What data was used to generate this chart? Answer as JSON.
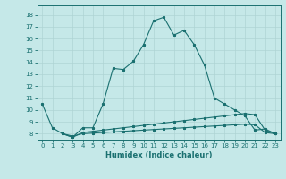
{
  "xlabel": "Humidex (Indice chaleur)",
  "bg_color": "#c5e8e8",
  "grid_color": "#afd4d4",
  "line_color": "#1a7070",
  "xlim": [
    -0.5,
    23.5
  ],
  "ylim": [
    7.5,
    18.8
  ],
  "xticks": [
    0,
    1,
    2,
    3,
    4,
    5,
    6,
    7,
    8,
    9,
    10,
    11,
    12,
    13,
    14,
    15,
    16,
    17,
    18,
    19,
    20,
    21,
    22,
    23
  ],
  "yticks": [
    8,
    9,
    10,
    11,
    12,
    13,
    14,
    15,
    16,
    17,
    18
  ],
  "line1_x": [
    0,
    1,
    2,
    3,
    4,
    5,
    6,
    7,
    8,
    9,
    10,
    11,
    12,
    13,
    14,
    15,
    16,
    17,
    18,
    19,
    20,
    21,
    22,
    23
  ],
  "line1_y": [
    10.5,
    8.5,
    8.0,
    7.7,
    8.5,
    8.5,
    10.5,
    13.5,
    13.4,
    14.1,
    15.5,
    17.5,
    17.8,
    16.3,
    16.7,
    15.5,
    13.8,
    11.0,
    10.5,
    10.0,
    9.5,
    8.3,
    8.4,
    8.0
  ],
  "line2_x": [
    2,
    3,
    4,
    5,
    6,
    7,
    8,
    9,
    10,
    11,
    12,
    13,
    14,
    15,
    16,
    17,
    18,
    19,
    20,
    21,
    22,
    23
  ],
  "line2_y": [
    8.0,
    7.7,
    8.1,
    8.2,
    8.3,
    8.4,
    8.5,
    8.6,
    8.7,
    8.8,
    8.9,
    9.0,
    9.1,
    9.2,
    9.3,
    9.4,
    9.5,
    9.6,
    9.7,
    9.6,
    8.3,
    8.0
  ],
  "line3_x": [
    2,
    3,
    4,
    5,
    6,
    7,
    8,
    9,
    10,
    11,
    12,
    13,
    14,
    15,
    16,
    17,
    18,
    19,
    20,
    21,
    22,
    23
  ],
  "line3_y": [
    8.0,
    7.8,
    8.0,
    8.05,
    8.1,
    8.15,
    8.2,
    8.25,
    8.3,
    8.35,
    8.4,
    8.45,
    8.5,
    8.55,
    8.6,
    8.65,
    8.7,
    8.75,
    8.8,
    8.75,
    8.1,
    8.0
  ]
}
